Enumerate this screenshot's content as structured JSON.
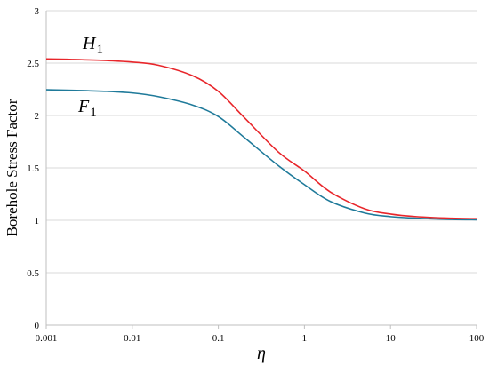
{
  "chart_data": {
    "type": "line",
    "xlabel": "η",
    "ylabel": "Borehole Stress Factor",
    "x_scale": "log",
    "xlim": [
      0.001,
      100
    ],
    "ylim": [
      0,
      3
    ],
    "x_ticks": [
      "0.001",
      "0.01",
      "0.1",
      "1",
      "10",
      "100"
    ],
    "y_ticks": [
      "0",
      "0.5",
      "1",
      "1.5",
      "2",
      "2.5",
      "3"
    ],
    "grid": "horizontal",
    "series": [
      {
        "name": "H",
        "subscript": "1",
        "color": "#e8262b",
        "x": [
          0.001,
          0.002,
          0.005,
          0.01,
          0.02,
          0.05,
          0.1,
          0.2,
          0.5,
          1,
          2,
          5,
          10,
          20,
          50,
          100
        ],
        "y": [
          2.54,
          2.535,
          2.525,
          2.51,
          2.48,
          2.38,
          2.23,
          1.98,
          1.65,
          1.47,
          1.27,
          1.11,
          1.06,
          1.035,
          1.02,
          1.015
        ]
      },
      {
        "name": "F",
        "subscript": "1",
        "color": "#1f7a9a",
        "x": [
          0.001,
          0.002,
          0.005,
          0.01,
          0.02,
          0.05,
          0.1,
          0.2,
          0.5,
          1,
          2,
          5,
          10,
          20,
          50,
          100
        ],
        "y": [
          2.245,
          2.24,
          2.23,
          2.215,
          2.18,
          2.1,
          1.99,
          1.79,
          1.52,
          1.34,
          1.18,
          1.07,
          1.035,
          1.02,
          1.008,
          1.005
        ]
      }
    ]
  }
}
